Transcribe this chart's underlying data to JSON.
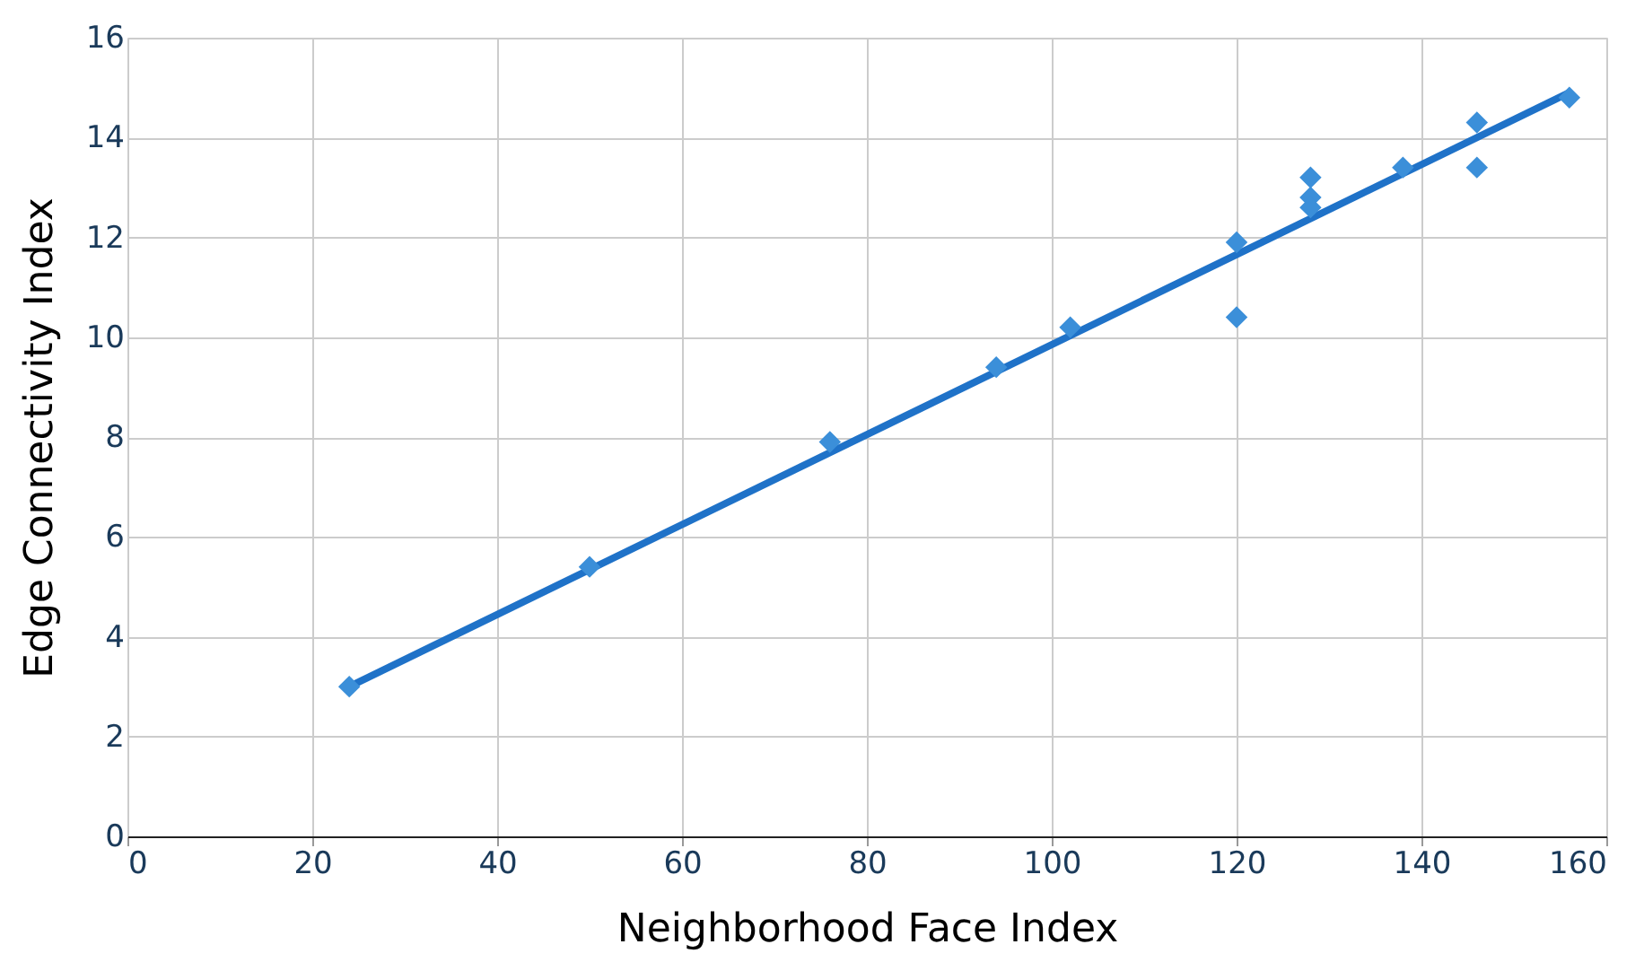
{
  "chart_data": {
    "type": "scatter",
    "xlabel": "Neighborhood Face Index",
    "ylabel": "Edge Connectivity Index",
    "xlim": [
      0,
      160
    ],
    "xticks": [
      0,
      20,
      40,
      60,
      80,
      100,
      120,
      140,
      160
    ],
    "ylim": [
      0,
      16
    ],
    "yticks": [
      0,
      2,
      4,
      6,
      8,
      10,
      12,
      14,
      16
    ],
    "grid": true,
    "series": [
      {
        "color": "#3b8fd9",
        "marker": "diamond",
        "x": [
          24,
          50,
          76,
          94,
          102,
          120,
          120,
          128,
          128,
          128,
          138,
          146,
          146,
          156
        ],
        "values": [
          3.0,
          5.4,
          7.9,
          9.4,
          10.2,
          11.9,
          10.4,
          13.2,
          12.8,
          12.6,
          13.4,
          14.3,
          13.4,
          14.8
        ]
      },
      {
        "type": "line",
        "marker": "none",
        "color": "#1f72c8",
        "line_style": "solid",
        "x": [
          24,
          156
        ],
        "values": [
          3.0,
          14.9
        ]
      }
    ]
  }
}
